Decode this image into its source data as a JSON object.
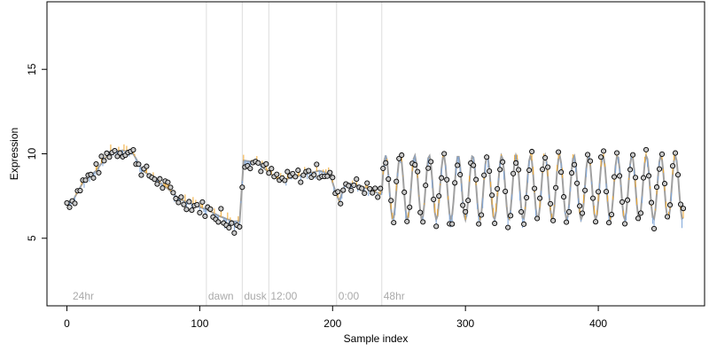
{
  "chart_data": {
    "type": "scatter",
    "title": "",
    "xlabel": "Sample index",
    "ylabel": "Expression",
    "xlim": [
      -15,
      480
    ],
    "ylim": [
      1,
      19
    ],
    "x_ticks": [
      0,
      100,
      200,
      300,
      400
    ],
    "y_ticks": [
      5,
      10,
      15
    ],
    "grid": false,
    "colors": {
      "point_fill": "#c8c8c8",
      "point_stroke": "#000000",
      "fit_line": "#a0a0a0",
      "residual_positive": "#f0a830",
      "residual_negative": "#7fa6d9",
      "annotation_line": "#dddddd",
      "annotation_text": "#aaaaaa",
      "axis": "#000000"
    },
    "annotations": [
      {
        "x": 105,
        "label": "dawn",
        "show_line": true
      },
      {
        "x": 132,
        "label": "dusk",
        "show_line": true
      },
      {
        "x": 152,
        "label": "12:00",
        "show_line": true
      },
      {
        "x": 203,
        "label": "0:00",
        "show_line": true
      },
      {
        "x": 237,
        "label": "48hr",
        "show_line": true
      },
      {
        "x": 3,
        "label": "24hr",
        "show_line": false
      }
    ],
    "series": [
      {
        "fit_anchors": [
          [
            0,
            7.1
          ],
          [
            5,
            7.3
          ],
          [
            12,
            8.3
          ],
          [
            22,
            9.0
          ],
          [
            32,
            10.1
          ],
          [
            42,
            10.2
          ],
          [
            50,
            10.0
          ],
          [
            57,
            9.0
          ],
          [
            65,
            8.6
          ],
          [
            75,
            8.0
          ],
          [
            85,
            7.3
          ],
          [
            95,
            7.0
          ],
          [
            105,
            6.7
          ],
          [
            115,
            6.3
          ],
          [
            125,
            6.0
          ],
          [
            130,
            6.0
          ],
          [
            133,
            9.6
          ],
          [
            143,
            9.5
          ],
          [
            152,
            8.9
          ],
          [
            160,
            8.4
          ],
          [
            170,
            8.6
          ],
          [
            180,
            8.8
          ],
          [
            190,
            9.0
          ],
          [
            198,
            8.8
          ],
          [
            202,
            7.8
          ],
          [
            205,
            7.2
          ],
          [
            210,
            8.3
          ],
          [
            220,
            8.1
          ],
          [
            228,
            7.9
          ],
          [
            236,
            7.6
          ]
        ],
        "oscillation": {
          "start": 237,
          "end": 465,
          "period": 10.9,
          "center": 8.0,
          "amplitude": 1.9,
          "phase_peak_x": 240
        }
      }
    ]
  }
}
